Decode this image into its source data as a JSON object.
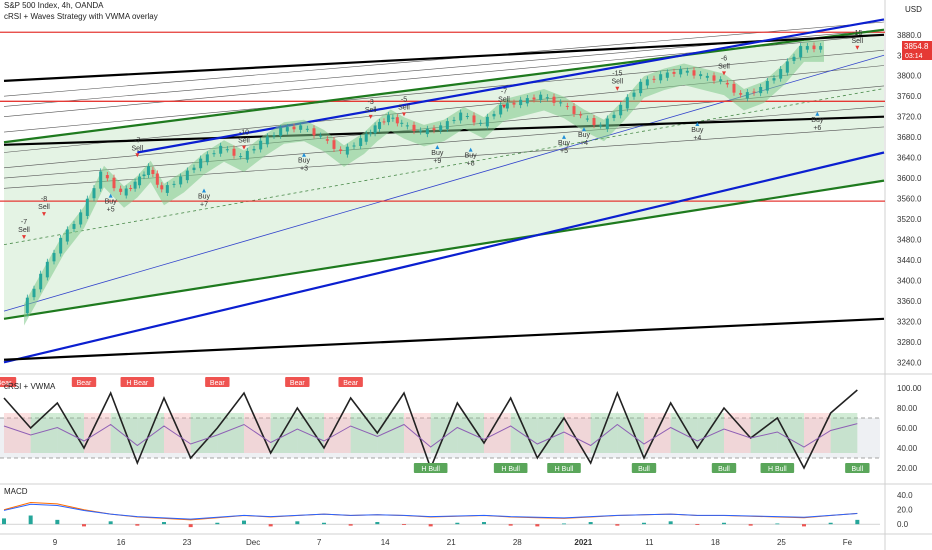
{
  "header": {
    "symbol": "S&P 500 Index, 4h, OANDA",
    "indicator": "cRSI + Waves Strategy with VWMA overlay",
    "currency": "USD"
  },
  "price_badges": {
    "last": "3854.8",
    "countdown": "03:14"
  },
  "panes": {
    "crsi_label": "cRSI + VWMA",
    "macd_label": "MACD"
  },
  "colors": {
    "candle_up": "#26a69a",
    "candle_down": "#ef5350",
    "green_line": "#1e7a1e",
    "blue_line": "#0b1fd0",
    "black_line": "#000000",
    "red_line": "#e53935",
    "band_green": "#7fc98a",
    "band_red": "#f4a5a5",
    "channel_fill": "#d9eed9"
  },
  "chart_data": [
    {
      "type": "line",
      "subtype": "candlestick",
      "title": "S&P 500 Index, 4h, OANDA",
      "x_ticks": [
        "9",
        "16",
        "23",
        "Dec",
        "7",
        "14",
        "21",
        "28",
        "2021",
        "11",
        "18",
        "25",
        "Fe"
      ],
      "y_ticks": [
        3240,
        3280,
        3320,
        3360,
        3400,
        3440,
        3480,
        3520,
        3560,
        3600,
        3640,
        3680,
        3720,
        3760,
        3800,
        3840,
        3880
      ],
      "ylim": [
        3225,
        3905
      ],
      "last_price": 3854.8,
      "close_series": {
        "x": [
          3,
          6,
          9,
          12,
          15,
          18,
          20,
          22,
          24,
          27,
          30,
          33,
          36,
          39,
          42,
          45,
          48,
          51,
          54,
          56,
          58,
          60,
          63,
          66,
          69,
          72,
          75,
          78,
          81,
          84,
          87,
          90,
          93,
          96,
          99,
          102,
          105,
          108,
          111,
          114,
          117,
          120,
          123
        ],
        "y": [
          3340,
          3410,
          3480,
          3530,
          3610,
          3570,
          3590,
          3620,
          3575,
          3600,
          3635,
          3660,
          3640,
          3670,
          3695,
          3700,
          3680,
          3650,
          3675,
          3700,
          3720,
          3705,
          3690,
          3700,
          3725,
          3705,
          3740,
          3750,
          3760,
          3745,
          3720,
          3700,
          3740,
          3785,
          3800,
          3810,
          3800,
          3790,
          3760,
          3775,
          3810,
          3855,
          3855
        ]
      },
      "horizontal_levels": [
        3885,
        3750,
        3555
      ],
      "signals": [
        {
          "label": "-7",
          "text": "Sell",
          "x": 3,
          "y": 3510
        },
        {
          "label": "-8",
          "text": "Sell",
          "x": 6,
          "y": 3555
        },
        {
          "label": "Buy",
          "text": "+5",
          "x": 16,
          "y": 3550
        },
        {
          "label": "-7",
          "text": "Sell",
          "x": 20,
          "y": 3670
        },
        {
          "label": "Buy",
          "text": "+7",
          "x": 30,
          "y": 3560
        },
        {
          "label": "-10",
          "text": "Sell",
          "x": 36,
          "y": 3685
        },
        {
          "label": "Buy",
          "text": "+3",
          "x": 45,
          "y": 3630
        },
        {
          "label": "-3",
          "text": "Sell",
          "x": 55,
          "y": 3745
        },
        {
          "label": "-5",
          "text": "Sell",
          "x": 60,
          "y": 3750
        },
        {
          "label": "Buy",
          "text": "+9",
          "x": 65,
          "y": 3645
        },
        {
          "label": "Buy",
          "text": "+8",
          "x": 70,
          "y": 3640
        },
        {
          "label": "-7",
          "text": "Sell",
          "x": 75,
          "y": 3765
        },
        {
          "label": "Buy",
          "text": "+5",
          "x": 84,
          "y": 3665
        },
        {
          "label": "Buy",
          "text": "+4",
          "x": 87,
          "y": 3680
        },
        {
          "label": "-15",
          "text": "Sell",
          "x": 92,
          "y": 3800
        },
        {
          "label": "Buy",
          "text": "+4",
          "x": 104,
          "y": 3690
        },
        {
          "label": "-6",
          "text": "Sell",
          "x": 108,
          "y": 3830
        },
        {
          "label": "Buy",
          "text": "+6",
          "x": 122,
          "y": 3710
        },
        {
          "label": "-15",
          "text": "Sell",
          "x": 128,
          "y": 3880
        }
      ]
    },
    {
      "type": "line",
      "title": "cRSI + VWMA",
      "y_ticks": [
        20,
        40,
        60,
        80,
        100
      ],
      "ylim": [
        10,
        110
      ],
      "levels": [
        70,
        30
      ],
      "x": [
        0,
        4,
        8,
        12,
        16,
        20,
        24,
        28,
        32,
        36,
        40,
        44,
        48,
        52,
        56,
        60,
        64,
        68,
        72,
        76,
        80,
        84,
        88,
        92,
        96,
        100,
        104,
        108,
        112,
        116,
        120,
        124,
        128
      ],
      "values": [
        90,
        60,
        85,
        40,
        95,
        25,
        90,
        30,
        60,
        95,
        35,
        80,
        40,
        90,
        55,
        95,
        20,
        85,
        45,
        90,
        30,
        70,
        25,
        95,
        30,
        85,
        40,
        80,
        50,
        70,
        20,
        75,
        98
      ],
      "labels": [
        "Bear",
        "Bear",
        "H Bear",
        "Bear",
        "Bear",
        "Bear",
        "H Bull",
        "H Bull",
        "H Bull",
        "Bull",
        "Bull",
        "H Bull",
        "Bull"
      ]
    },
    {
      "type": "bar",
      "title": "MACD",
      "y_ticks": [
        0.0,
        20.0,
        40.0
      ],
      "ylim": [
        -8,
        50
      ],
      "x": [
        0,
        4,
        8,
        12,
        16,
        20,
        24,
        28,
        32,
        36,
        40,
        44,
        48,
        52,
        56,
        60,
        64,
        68,
        72,
        76,
        80,
        84,
        88,
        92,
        96,
        100,
        104,
        108,
        112,
        116,
        120,
        124,
        128
      ],
      "values": [
        8,
        12,
        6,
        -3,
        4,
        -2,
        3,
        -4,
        2,
        5,
        -3,
        4,
        2,
        -2,
        3,
        -1,
        -3,
        2,
        3,
        -2,
        -3,
        1,
        3,
        -2,
        2,
        4,
        -1,
        2,
        -2,
        1,
        -3,
        2,
        6
      ],
      "signal": [
        20,
        30,
        28,
        20,
        14,
        10,
        8,
        6,
        9,
        12,
        10,
        12,
        14,
        12,
        13,
        12,
        10,
        11,
        12,
        10,
        9,
        8,
        10,
        12,
        13,
        14,
        12,
        12,
        11,
        10,
        9,
        12,
        15
      ]
    }
  ]
}
